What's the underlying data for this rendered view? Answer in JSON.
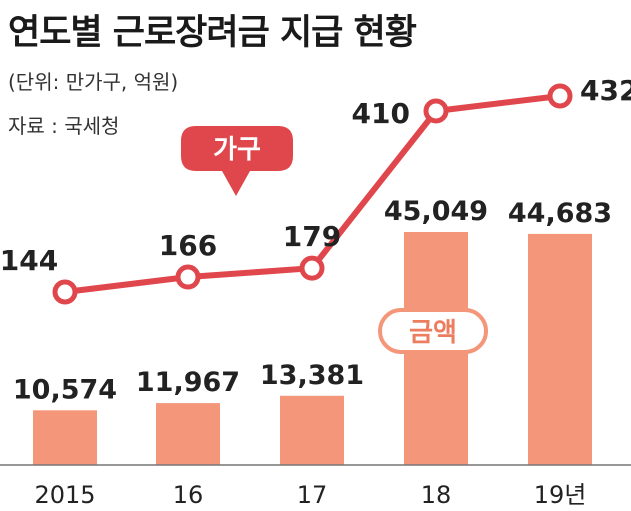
{
  "title": "연도별 근로장려금 지급 현황",
  "unit_note": "(단위: 만가구, 억원)",
  "source": "자료 : 국세청",
  "colors": {
    "line": "#e0474c",
    "bar": "#f4967a",
    "bar_label_text": "#ec7d5e"
  },
  "chart_data": {
    "type": "bar",
    "categories": [
      "2015",
      "16",
      "17",
      "18",
      "19년"
    ],
    "series": [
      {
        "name": "금액",
        "type": "bar",
        "values": [
          10574,
          11967,
          13381,
          45049,
          44683
        ],
        "labels": [
          "10,574",
          "11,967",
          "13,381",
          "45,049",
          "44,683"
        ]
      },
      {
        "name": "가구",
        "type": "line",
        "values": [
          144,
          166,
          179,
          410,
          432
        ],
        "labels": [
          "144",
          "166",
          "179",
          "410",
          "432"
        ]
      }
    ],
    "xlabel": "",
    "ylabel": "",
    "legend": "inline"
  }
}
